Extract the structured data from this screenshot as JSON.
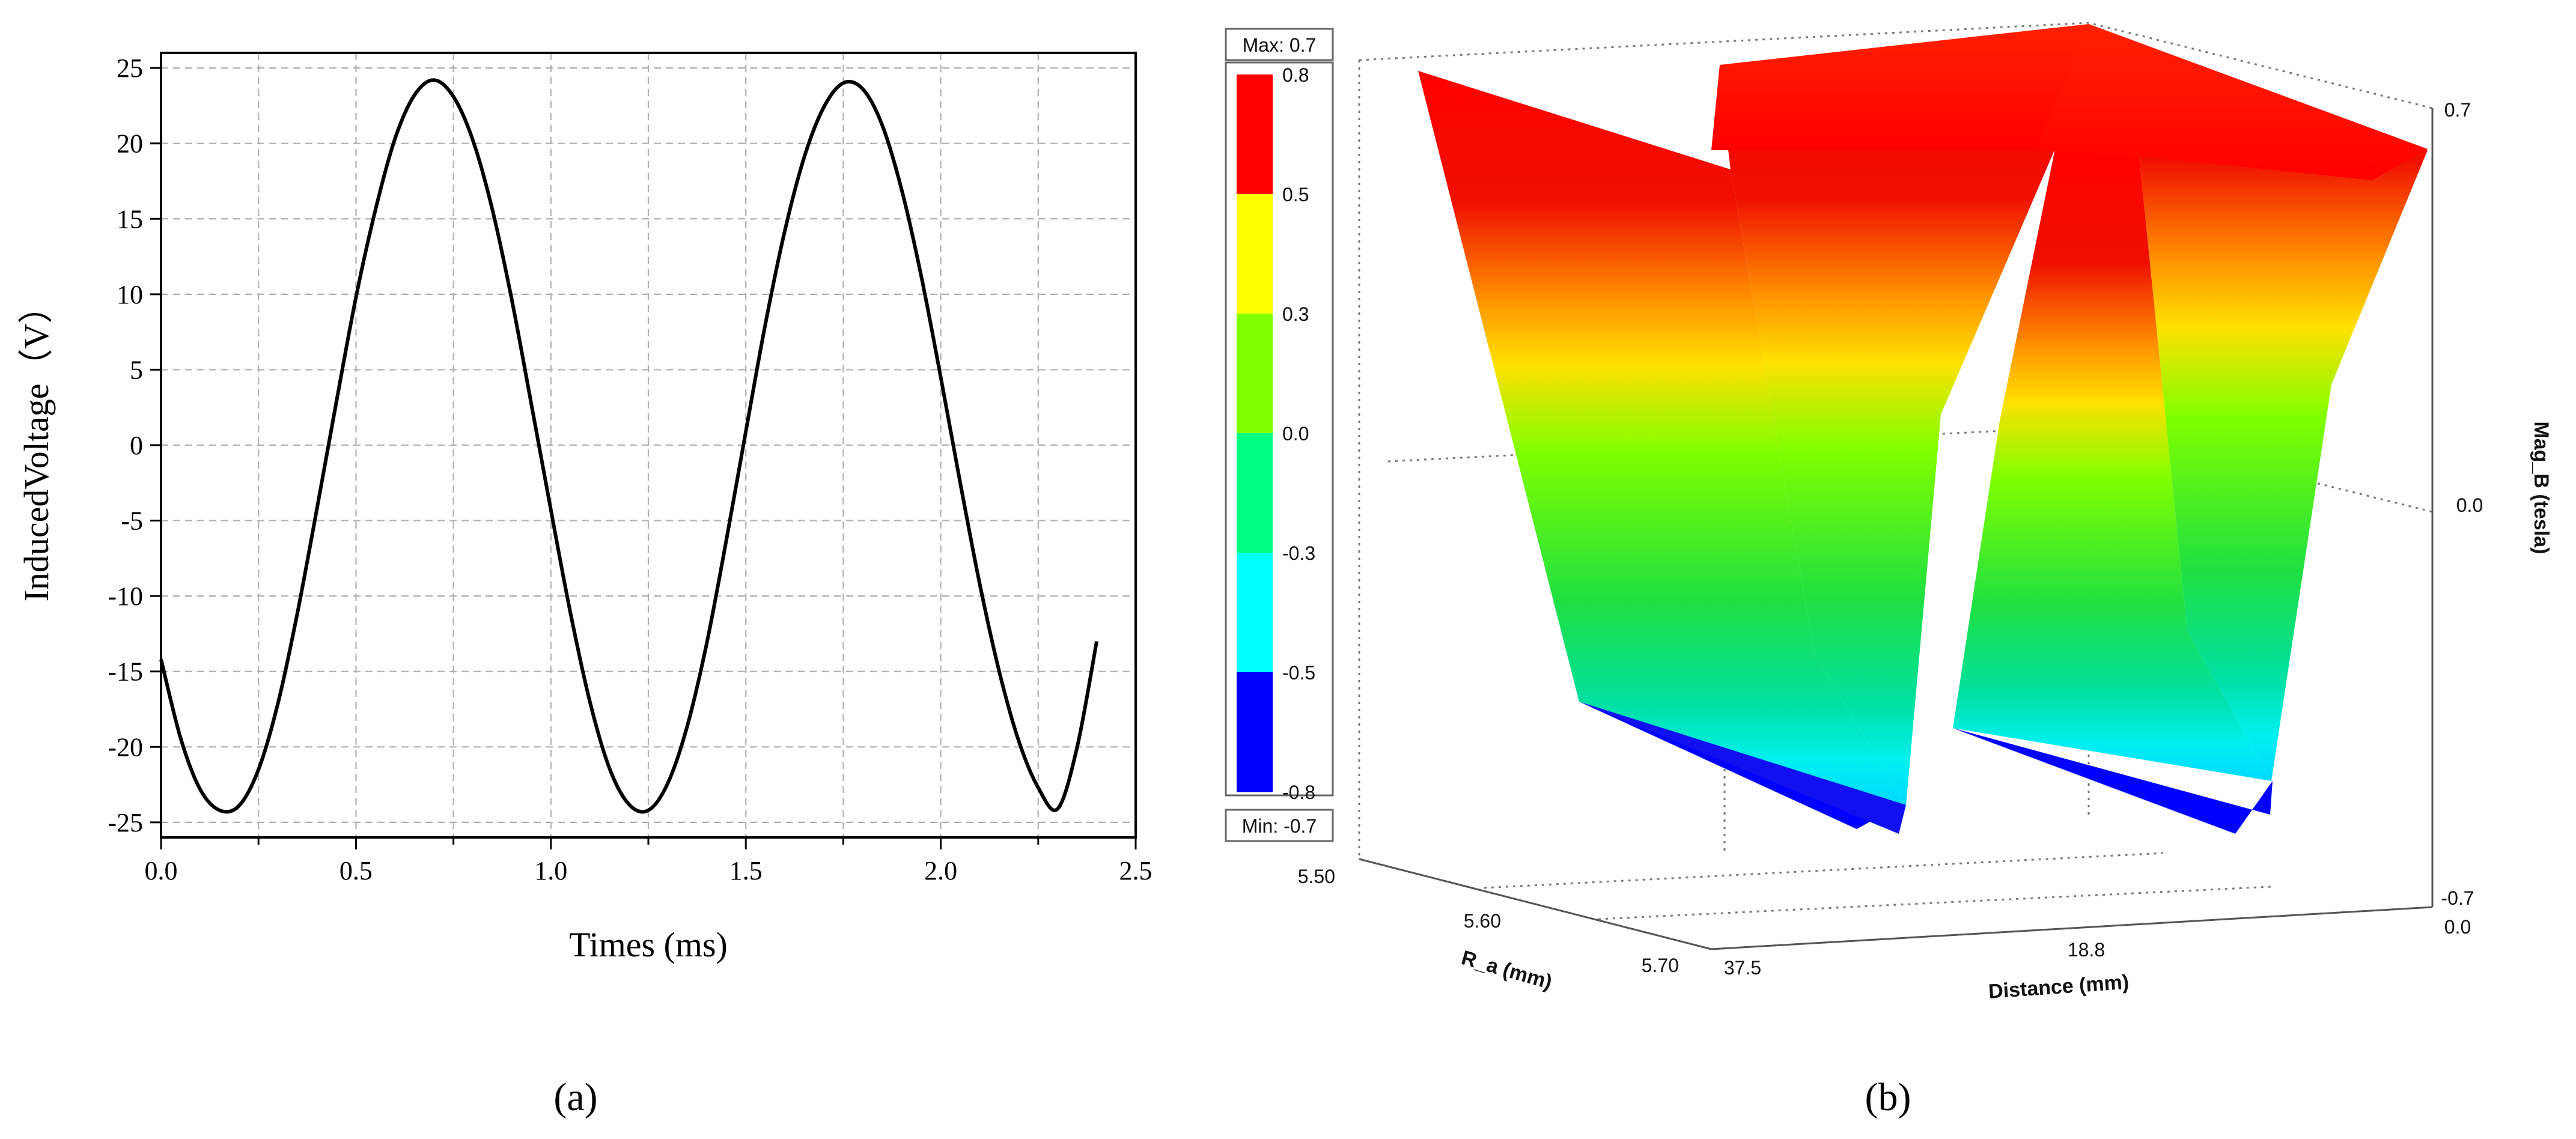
{
  "chart_data": [
    {
      "type": "line",
      "title": "",
      "xlabel": "Times (ms)",
      "ylabel": "InducedVoltage（V）",
      "xlim": [
        0,
        2.5
      ],
      "ylim": [
        -26,
        26
      ],
      "x_ticks": [
        "0.0",
        "0.5",
        "1.0",
        "1.5",
        "2.0",
        "2.5"
      ],
      "y_ticks": [
        "25",
        "20",
        "15",
        "10",
        "5",
        "0",
        "-5",
        "-10",
        "-15",
        "-20",
        "-25"
      ],
      "grid": true,
      "series": [
        {
          "x": [
            0.0,
            0.05,
            0.1,
            0.15,
            0.2,
            0.25,
            0.3,
            0.35,
            0.4,
            0.45,
            0.5,
            0.55,
            0.6,
            0.65,
            0.7,
            0.75,
            0.8,
            0.85,
            0.9,
            0.95,
            1.0,
            1.05,
            1.1,
            1.15,
            1.2,
            1.25,
            1.3,
            1.35,
            1.4,
            1.45,
            1.5,
            1.55,
            1.6,
            1.65,
            1.7,
            1.75,
            1.8,
            1.85,
            1.9,
            1.95,
            2.0,
            2.05,
            2.1,
            2.15,
            2.2,
            2.25,
            2.3,
            2.35,
            2.4
          ],
          "y": [
            -14.2,
            -19.4,
            -22.8,
            -24.2,
            -23.9,
            -21.5,
            -17.1,
            -11.1,
            -4.2,
            2.9,
            9.8,
            15.6,
            20.3,
            23.2,
            24.2,
            23.1,
            20.2,
            15.6,
            9.6,
            2.7,
            -4.3,
            -11.1,
            -17.0,
            -21.4,
            -23.8,
            -24.2,
            -22.4,
            -18.6,
            -13.1,
            -6.3,
            0.9,
            8.0,
            14.2,
            19.1,
            22.4,
            24.0,
            23.6,
            21.2,
            16.9,
            11.2,
            4.5,
            -2.5,
            -9.2,
            -15.0,
            -19.6,
            -22.7,
            -24.1,
            -20.0,
            -13.0
          ]
        }
      ],
      "caption": "(a)"
    },
    {
      "type": "surface",
      "title": "",
      "xlabel": "Distance (mm)",
      "ylabel": "R_a (mm)",
      "zlabel": "Mag_B (tesla)",
      "x_ticks": [
        "37.5",
        "18.8",
        "0.0"
      ],
      "y_ticks": [
        "5.50",
        "5.60",
        "5.70"
      ],
      "z_ticks": [
        "0.7",
        "0.0",
        "-0.7"
      ],
      "colorbar": {
        "max_label": "Max: 0.7",
        "min_label": "Min: -0.7",
        "levels": [
          "0.8",
          "0.5",
          "0.3",
          "0.0",
          "-0.3",
          "-0.5",
          "-0.8"
        ],
        "colors": [
          "#ff0000",
          "#ffff00",
          "#80ff00",
          "#00ff80",
          "#00ffff",
          "#0000ff"
        ]
      },
      "caption": "(b)"
    }
  ]
}
